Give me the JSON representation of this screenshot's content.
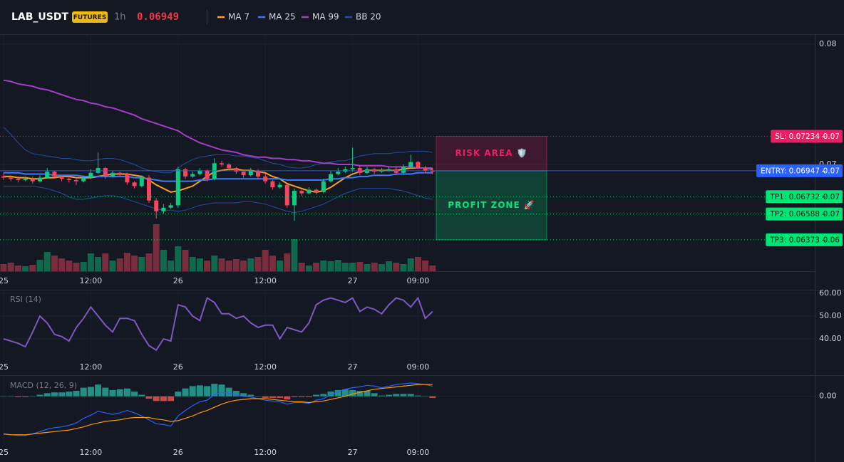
{
  "chart_data": [
    {
      "type": "candlestick",
      "title": "LAB_USDT",
      "badge": "FUTURES",
      "interval": "1h",
      "price": 0.06949,
      "price_color": "#f23645",
      "up_color": "#0ecb81",
      "down_color": "#f6465d",
      "open": [
        0.069,
        0.0689,
        0.0688,
        0.0687,
        0.0688,
        0.0686,
        0.0689,
        0.0694,
        0.069,
        0.0688,
        0.0687,
        0.0686,
        0.0689,
        0.0693,
        0.0697,
        0.069,
        0.0693,
        0.0692,
        0.0685,
        0.0682,
        0.0689,
        0.067,
        0.0661,
        0.0664,
        0.0666,
        0.0696,
        0.069,
        0.0692,
        0.0695,
        0.0688,
        0.0701,
        0.07,
        0.0697,
        0.0694,
        0.0691,
        0.0695,
        0.069,
        0.0686,
        0.0681,
        0.0683,
        0.0666,
        0.0678,
        0.0676,
        0.0679,
        0.0677,
        0.0686,
        0.0692,
        0.0694,
        0.0696,
        0.0697,
        0.0693,
        0.0696,
        0.0694,
        0.0695,
        0.0696,
        0.0693,
        0.0698,
        0.0702,
        0.0697,
        0.0695
      ],
      "high": [
        0.0693,
        0.0691,
        0.069,
        0.069,
        0.069,
        0.0691,
        0.0697,
        0.0695,
        0.0691,
        0.069,
        0.0689,
        0.0691,
        0.0696,
        0.071,
        0.0698,
        0.0695,
        0.0694,
        0.0693,
        0.0686,
        0.0691,
        0.0691,
        0.0672,
        0.0667,
        0.0668,
        0.0698,
        0.0697,
        0.0694,
        0.0697,
        0.0696,
        0.0705,
        0.0703,
        0.0701,
        0.0698,
        0.0694,
        0.0697,
        0.0696,
        0.0692,
        0.0687,
        0.0685,
        0.0684,
        0.068,
        0.0679,
        0.0681,
        0.068,
        0.0688,
        0.0695,
        0.0697,
        0.0698,
        0.0714,
        0.0699,
        0.0698,
        0.0697,
        0.0697,
        0.0698,
        0.0698,
        0.07,
        0.0708,
        0.0703,
        0.0699,
        0.0697
      ],
      "low": [
        0.0687,
        0.0686,
        0.0685,
        0.0686,
        0.0684,
        0.0685,
        0.0688,
        0.0689,
        0.0686,
        0.0685,
        0.0683,
        0.0685,
        0.0688,
        0.0692,
        0.0688,
        0.0689,
        0.069,
        0.0683,
        0.068,
        0.0681,
        0.0668,
        0.0655,
        0.0659,
        0.0663,
        0.0664,
        0.0688,
        0.0689,
        0.0691,
        0.0686,
        0.0687,
        0.0698,
        0.0695,
        0.0692,
        0.0689,
        0.069,
        0.0688,
        0.0684,
        0.0679,
        0.068,
        0.0664,
        0.0653,
        0.0674,
        0.0675,
        0.0675,
        0.0676,
        0.0685,
        0.0691,
        0.0693,
        0.0694,
        0.0691,
        0.0692,
        0.0692,
        0.0693,
        0.0694,
        0.0691,
        0.0692,
        0.0697,
        0.0696,
        0.0693,
        0.0692
      ],
      "close": [
        0.0689,
        0.0688,
        0.0687,
        0.0688,
        0.0686,
        0.0689,
        0.0694,
        0.069,
        0.0688,
        0.0687,
        0.0686,
        0.0689,
        0.0693,
        0.0697,
        0.069,
        0.0693,
        0.0692,
        0.0685,
        0.0682,
        0.0689,
        0.067,
        0.0661,
        0.0664,
        0.0666,
        0.0696,
        0.069,
        0.0692,
        0.0695,
        0.0688,
        0.0701,
        0.07,
        0.0697,
        0.0694,
        0.0691,
        0.0695,
        0.069,
        0.0686,
        0.0681,
        0.0683,
        0.0666,
        0.0678,
        0.0676,
        0.0679,
        0.0677,
        0.0686,
        0.0692,
        0.0694,
        0.0696,
        0.0697,
        0.0693,
        0.0696,
        0.0694,
        0.0695,
        0.0696,
        0.0693,
        0.0698,
        0.0702,
        0.0697,
        0.0695,
        0.0694
      ],
      "volume": [
        10,
        12,
        8,
        7,
        9,
        16,
        27,
        22,
        18,
        15,
        12,
        13,
        25,
        20,
        25,
        15,
        18,
        26,
        22,
        20,
        25,
        66,
        30,
        15,
        35,
        30,
        20,
        18,
        15,
        22,
        18,
        15,
        17,
        15,
        18,
        20,
        30,
        22,
        15,
        25,
        45,
        12,
        8,
        12,
        15,
        14,
        16,
        12,
        12,
        13,
        10,
        12,
        10,
        14,
        12,
        10,
        18,
        20,
        15,
        8
      ],
      "volume_ylim": [
        0,
        66
      ],
      "series": [
        {
          "name": "MA 7",
          "color": "#f7a21b",
          "values": [
            0.069,
            0.069,
            0.0689,
            0.0689,
            0.0688,
            0.0688,
            0.0689,
            0.0689,
            0.069,
            0.069,
            0.0689,
            0.0689,
            0.0689,
            0.069,
            0.0691,
            0.0692,
            0.0692,
            0.0692,
            0.0691,
            0.069,
            0.0687,
            0.0683,
            0.068,
            0.0677,
            0.0678,
            0.068,
            0.0682,
            0.0686,
            0.069,
            0.0694,
            0.0695,
            0.0696,
            0.0696,
            0.0695,
            0.0695,
            0.0694,
            0.0693,
            0.069,
            0.0688,
            0.0684,
            0.0682,
            0.068,
            0.0678,
            0.0677,
            0.0678,
            0.0681,
            0.0685,
            0.0689,
            0.0692,
            0.0694,
            0.0695,
            0.0695,
            0.0695,
            0.0695,
            0.0695,
            0.0696,
            0.0697,
            0.0697,
            0.0697,
            0.0696
          ]
        },
        {
          "name": "MA 25",
          "color": "#3b7cf6",
          "values": [
            0.0693,
            0.0693,
            0.0693,
            0.0692,
            0.0692,
            0.0692,
            0.0692,
            0.0691,
            0.0691,
            0.0691,
            0.0691,
            0.069,
            0.069,
            0.069,
            0.069,
            0.069,
            0.069,
            0.069,
            0.0689,
            0.0689,
            0.0688,
            0.0687,
            0.0686,
            0.0686,
            0.0686,
            0.0686,
            0.0686,
            0.0687,
            0.0687,
            0.0688,
            0.0688,
            0.0688,
            0.0688,
            0.0688,
            0.0688,
            0.0688,
            0.0688,
            0.0688,
            0.0688,
            0.0687,
            0.0687,
            0.0687,
            0.0687,
            0.0687,
            0.0687,
            0.0688,
            0.0688,
            0.0689,
            0.0689,
            0.069,
            0.069,
            0.0691,
            0.0691,
            0.0691,
            0.0692,
            0.0692,
            0.0692,
            0.0693,
            0.0693,
            0.0693
          ]
        },
        {
          "name": "MA 99",
          "color": "#a33ec9",
          "values": [
            0.077,
            0.0769,
            0.0767,
            0.0766,
            0.0765,
            0.0763,
            0.0762,
            0.076,
            0.0758,
            0.0756,
            0.0754,
            0.0753,
            0.0751,
            0.075,
            0.0748,
            0.0747,
            0.0745,
            0.0743,
            0.0741,
            0.0738,
            0.0736,
            0.0734,
            0.0732,
            0.073,
            0.0728,
            0.0724,
            0.0721,
            0.0718,
            0.0716,
            0.0714,
            0.0712,
            0.0711,
            0.071,
            0.0708,
            0.0707,
            0.0706,
            0.0706,
            0.0705,
            0.0705,
            0.0704,
            0.0704,
            0.0703,
            0.0703,
            0.0702,
            0.0701,
            0.0701,
            0.07,
            0.07,
            0.07,
            0.0699,
            0.0699,
            0.0699,
            0.0699,
            0.0698,
            0.0698,
            0.0698,
            0.0698,
            0.0697,
            0.0697,
            0.0697
          ]
        },
        {
          "name": "BB 20",
          "color": "#1f4fa0",
          "upper": [
            0.0731,
            0.0725,
            0.0718,
            0.0712,
            0.0709,
            0.0708,
            0.0707,
            0.0706,
            0.0705,
            0.0705,
            0.0704,
            0.0703,
            0.0703,
            0.0704,
            0.0705,
            0.0705,
            0.0704,
            0.0702,
            0.07,
            0.0697,
            0.0695,
            0.0694,
            0.0693,
            0.0693,
            0.0697,
            0.0701,
            0.0704,
            0.0706,
            0.0707,
            0.0708,
            0.0708,
            0.0708,
            0.0707,
            0.0707,
            0.0706,
            0.0705,
            0.0703,
            0.0701,
            0.07,
            0.0698,
            0.0697,
            0.0697,
            0.0698,
            0.07,
            0.0701,
            0.0702,
            0.0703,
            0.0703,
            0.0705,
            0.0707,
            0.0708,
            0.0709,
            0.0709,
            0.0709,
            0.071,
            0.071,
            0.0711,
            0.0711,
            0.0711,
            0.071
          ],
          "lower": [
            0.0682,
            0.0682,
            0.0682,
            0.0682,
            0.0682,
            0.0681,
            0.068,
            0.0678,
            0.0676,
            0.0673,
            0.0671,
            0.0671,
            0.0672,
            0.0673,
            0.0674,
            0.0674,
            0.0673,
            0.0671,
            0.0669,
            0.0667,
            0.0665,
            0.0663,
            0.0662,
            0.0662,
            0.0661,
            0.0662,
            0.0664,
            0.0666,
            0.0667,
            0.0668,
            0.0668,
            0.0668,
            0.0668,
            0.0669,
            0.0669,
            0.0668,
            0.0667,
            0.0665,
            0.0663,
            0.0661,
            0.066,
            0.0661,
            0.0663,
            0.0665,
            0.0667,
            0.067,
            0.0673,
            0.0676,
            0.0678,
            0.068,
            0.068,
            0.068,
            0.068,
            0.068,
            0.0679,
            0.0678,
            0.0676,
            0.0674,
            0.0672,
            0.0671
          ]
        }
      ],
      "levels": [
        {
          "label": "SL: 0.07234",
          "value": 0.07234,
          "value_label": "0.07",
          "color": "#e91e63",
          "text_color": "#ffffff",
          "line_style": "dotted"
        },
        {
          "label": "ENTRY: 0.06947",
          "value": 0.06947,
          "value_label": "0.07",
          "color": "#2962ff",
          "text_color": "#ffffff",
          "line_style": "solid"
        },
        {
          "label": "TP1: 0.06732",
          "value": 0.06732,
          "value_label": "0.07",
          "color": "#00e676",
          "text_color": "#0b1a12",
          "line_style": "dotted"
        },
        {
          "label": "TP2: 0.06588",
          "value": 0.06588,
          "value_label": "0.07",
          "color": "#00e676",
          "text_color": "#0b1a12",
          "line_style": "dotted"
        },
        {
          "label": "TP3: 0.06373",
          "value": 0.06373,
          "value_label": "0.06",
          "color": "#00e676",
          "text_color": "#0b1a12",
          "line_style": "dotted"
        }
      ],
      "zones": [
        {
          "label": "RISK AREA 🛡️",
          "color": "#e91e63"
        },
        {
          "label": "PROFIT ZONE 🚀",
          "color": "#00e676"
        }
      ],
      "xticks": [
        {
          "value": 0,
          "label": "25"
        },
        {
          "value": 12,
          "label": "12:00"
        },
        {
          "value": 24,
          "label": "26"
        },
        {
          "value": 36,
          "label": "12:00"
        },
        {
          "value": 48,
          "label": "27"
        },
        {
          "value": 57,
          "label": "09:00"
        }
      ],
      "ylim": [
        0.06112,
        0.08083
      ],
      "yticks": [
        0.07,
        0.08
      ],
      "grid": true
    },
    {
      "type": "line",
      "title": "RSI (14)",
      "series": [
        {
          "color": "#7e57c2",
          "values": [
            40,
            39,
            38,
            36.5,
            43,
            50,
            47,
            42,
            41,
            39,
            45,
            49,
            54,
            50,
            46,
            43,
            49,
            49,
            48,
            42,
            37,
            35,
            40,
            39,
            55,
            54,
            50,
            48,
            58,
            56,
            51,
            51,
            49,
            50,
            47,
            45,
            46,
            46,
            40,
            45,
            44,
            43,
            47,
            55,
            57,
            58,
            57,
            56,
            58,
            52,
            54,
            53,
            51,
            55,
            58,
            57,
            54,
            58,
            49,
            52
          ]
        }
      ],
      "ylim": [
        30.9,
        61.6
      ],
      "yticks": [
        {
          "value": 40,
          "label": "40.00"
        },
        {
          "value": 50,
          "label": "50.00"
        },
        {
          "value": 60,
          "label": "60.00"
        }
      ],
      "xticks": [
        {
          "value": 0,
          "label": "25"
        },
        {
          "value": 12,
          "label": "12:00"
        },
        {
          "value": 24,
          "label": "26"
        },
        {
          "value": 36,
          "label": "12:00"
        },
        {
          "value": 48,
          "label": "27"
        },
        {
          "value": 57,
          "label": "09:00"
        }
      ]
    },
    {
      "type": "macd",
      "title": "MACD (12, 26, 9)",
      "series": [
        {
          "color": "#2962ff",
          "values": [
            -0.00048,
            -0.00049,
            -0.0005,
            -0.0005,
            -0.00048,
            -0.00045,
            -0.00042,
            -0.0004,
            -0.00039,
            -0.00037,
            -0.00034,
            -0.00028,
            -0.00024,
            -0.00019,
            -0.00021,
            -0.00023,
            -0.00021,
            -0.00018,
            -0.00021,
            -0.00025,
            -0.0003,
            -0.00035,
            -0.00036,
            -0.00038,
            -0.00025,
            -0.00018,
            -0.00012,
            -7e-05,
            -5e-05,
            2e-05,
            5e-05,
            4e-05,
            2e-05,
            0,
            -1e-05,
            -3e-05,
            -5e-05,
            -6e-05,
            -7e-05,
            -0.0001,
            -8e-05,
            -8e-05,
            -9e-05,
            -5e-05,
            -3e-05,
            2e-05,
            6e-05,
            9e-05,
            0.00011,
            0.00012,
            0.00014,
            0.00013,
            0.00011,
            0.00013,
            0.00015,
            0.00016,
            0.00017,
            0.00016,
            0.00015,
            0.00013
          ]
        },
        {
          "color": "#ff9800",
          "values": [
            -0.00048,
            -0.00049,
            -0.00049,
            -0.00049,
            -0.00048,
            -0.00047,
            -0.00046,
            -0.00045,
            -0.00044,
            -0.00043,
            -0.00041,
            -0.00039,
            -0.00036,
            -0.00034,
            -0.00032,
            -0.00031,
            -0.0003,
            -0.00028,
            -0.00027,
            -0.00027,
            -0.00027,
            -0.00029,
            -0.0003,
            -0.00032,
            -0.00031,
            -0.00028,
            -0.00025,
            -0.00021,
            -0.00018,
            -0.00014,
            -0.0001,
            -7e-05,
            -5e-05,
            -4e-05,
            -3e-05,
            -3e-05,
            -3e-05,
            -4e-05,
            -5e-05,
            -6e-05,
            -7e-05,
            -7e-05,
            -8e-05,
            -7e-05,
            -6e-05,
            -4e-05,
            -2e-05,
            0,
            3e-05,
            5e-05,
            7e-05,
            9e-05,
            0.0001,
            0.00011,
            0.00012,
            0.00013,
            0.00014,
            0.00015,
            0.00015,
            0.00015
          ]
        }
      ],
      "histogram": {
        "up_color": "#26a69a",
        "down_color": "#ef5350",
        "values": [
          0,
          0,
          -1e-05,
          -1e-05,
          0,
          2e-05,
          4e-05,
          5e-05,
          5e-05,
          6e-05,
          7e-05,
          0.00011,
          0.00012,
          0.00015,
          0.00011,
          8e-05,
          9e-05,
          0.0001,
          6e-05,
          2e-05,
          -3e-05,
          -6e-05,
          -6e-05,
          -6e-05,
          6e-05,
          0.0001,
          0.00013,
          0.00014,
          0.00013,
          0.00016,
          0.00015,
          0.00011,
          7e-05,
          4e-05,
          2e-05,
          0,
          -2e-05,
          -2e-05,
          -2e-05,
          -4e-05,
          -1e-05,
          -1e-05,
          -1e-05,
          2e-05,
          3e-05,
          6e-05,
          8e-05,
          9e-05,
          8e-05,
          7e-05,
          7e-05,
          4e-05,
          1e-05,
          2e-05,
          3e-05,
          3e-05,
          3e-05,
          1e-05,
          0,
          -2e-05
        ]
      },
      "ylim": [
        -0.00062,
        0.00027
      ],
      "yticks": [
        {
          "value": 0,
          "label": "0.00"
        }
      ],
      "xticks": [
        {
          "value": 0,
          "label": "25"
        },
        {
          "value": 12,
          "label": "12:00"
        },
        {
          "value": 24,
          "label": "26"
        },
        {
          "value": 36,
          "label": "12:00"
        },
        {
          "value": 48,
          "label": "27"
        },
        {
          "value": 57,
          "label": "09:00"
        }
      ]
    }
  ]
}
